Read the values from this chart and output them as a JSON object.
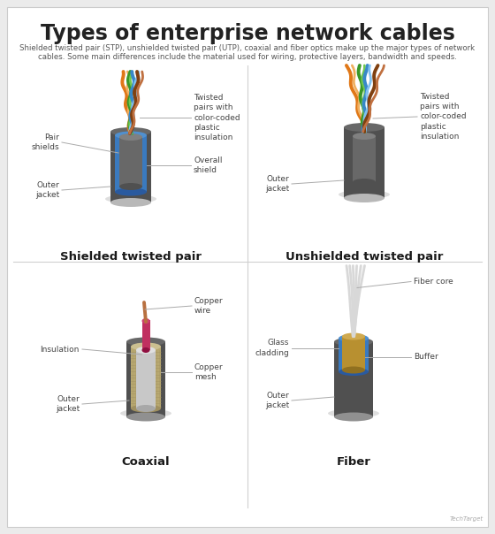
{
  "title": "Types of enterprise network cables",
  "subtitle_line1": "Shielded twisted pair (STP), unshielded twisted pair (UTP), coaxial and fiber optics make up the major types of network",
  "subtitle_line2": "cables. Some main differences include the material used for wiring, protective layers, bandwidth and speeds.",
  "bg_color": "#ebebeb",
  "panel_bg": "#ffffff",
  "title_color": "#222222",
  "subtitle_color": "#555555",
  "label_color": "#444444",
  "cable_names": [
    "Shielded twisted pair",
    "Unshielded twisted pair",
    "Coaxial",
    "Fiber"
  ],
  "cable_name_color": "#1a1a1a",
  "divider_color": "#d0d0d0",
  "wire_orange": "#e07818",
  "wire_orange_light": "#f0a050",
  "wire_green": "#3a9828",
  "wire_green_light": "#70c850",
  "wire_blue": "#3888c8",
  "wire_blue_light": "#70b8e8",
  "wire_brown": "#804010",
  "wire_brown_light": "#c07040",
  "wire_white": "#e8e8e8",
  "jacket_dark": "#505050",
  "jacket_top": "#686868",
  "jacket_bottom": "#b8b8b8",
  "shield_blue": "#3a7abf",
  "shield_blue_top": "#5090cf",
  "inner_gray": "#686868",
  "inner_gray_top": "#808080",
  "coax_mesh": "#b8a870",
  "coax_mesh_top": "#ccc090",
  "coax_ins": "#c8c8c8",
  "coax_ins_top": "#e0e0e0",
  "coax_wire_pink": "#c03060",
  "coax_wire_copper": "#b87040",
  "fiber_outer_dark": "#484848",
  "fiber_clad_blue": "#3a7abf",
  "fiber_clad_top": "#5090cf",
  "fiber_buf_gold": "#b89030",
  "fiber_buf_top": "#d0aa50",
  "fiber_strand": "#d8d8d8",
  "shadow_color": "#c8c8c8",
  "annotation_line": "#aaaaaa",
  "watermark": "#aaaaaa"
}
